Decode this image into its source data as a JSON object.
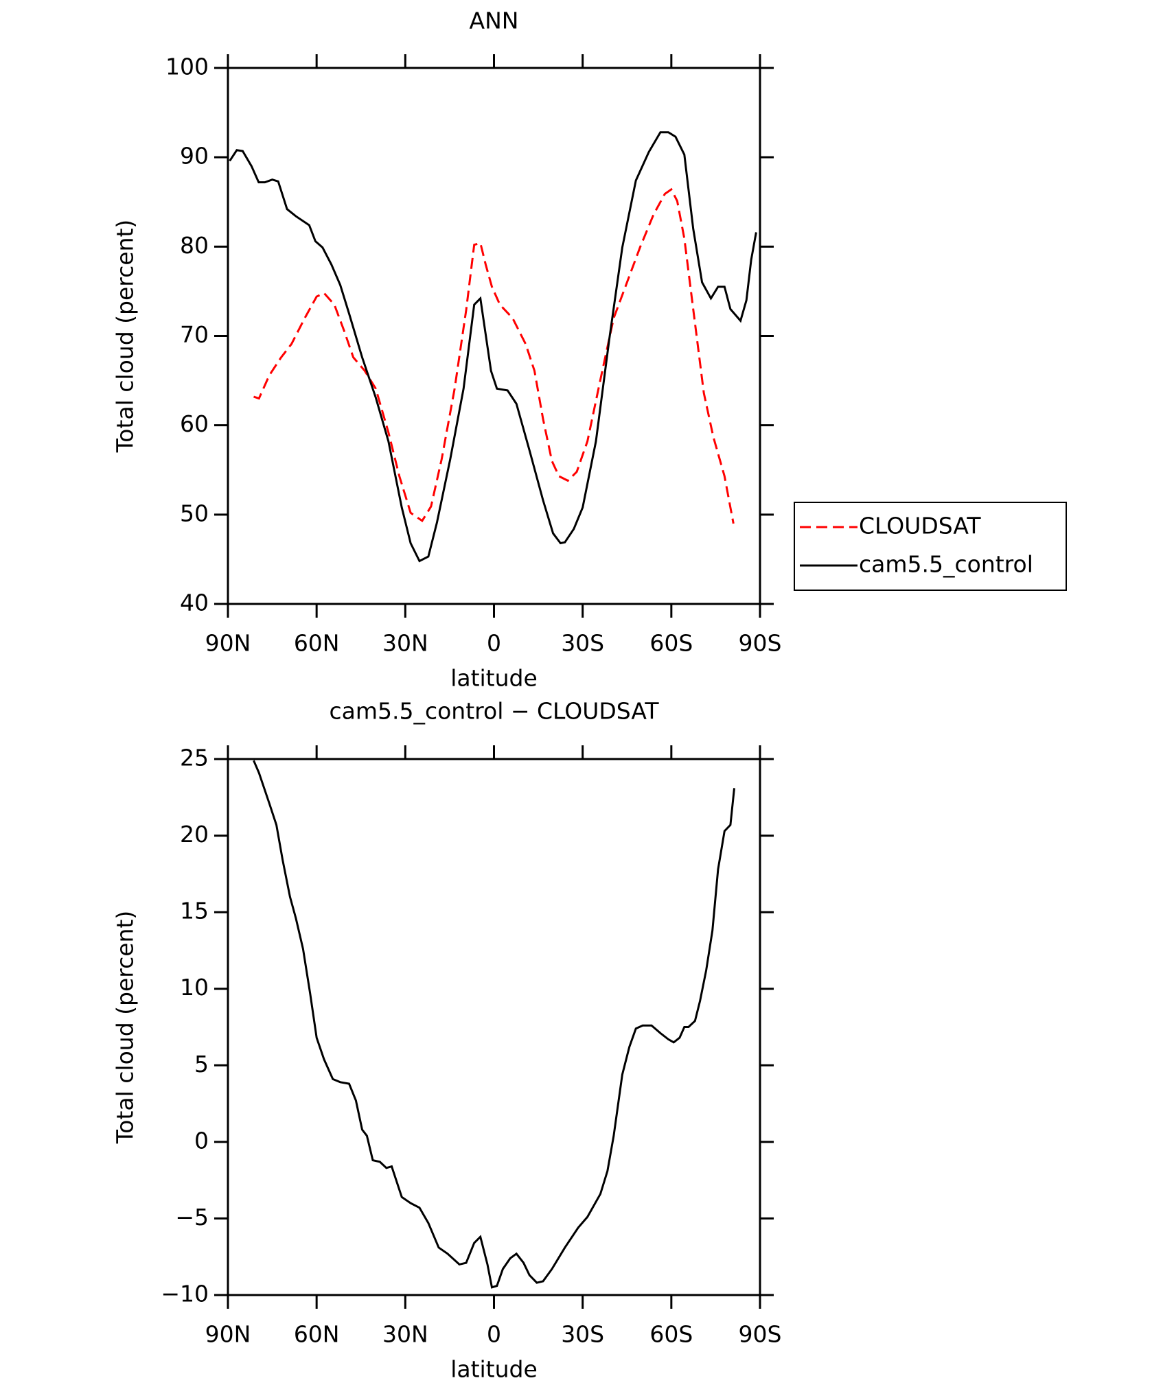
{
  "chart_data": [
    {
      "type": "line",
      "title": "ANN",
      "xlabel": "latitude",
      "ylabel": "Total cloud (percent)",
      "xlim": [
        90,
        -90
      ],
      "xticks": [
        {
          "value": 90,
          "label": "90N"
        },
        {
          "value": 60,
          "label": "60N"
        },
        {
          "value": 30,
          "label": "30N"
        },
        0,
        {
          "value": -30,
          "label": "30S"
        },
        {
          "value": -60,
          "label": "60S"
        },
        {
          "value": -90,
          "label": "90S"
        }
      ],
      "ylim": [
        40,
        100
      ],
      "yticks": [
        40,
        50,
        60,
        70,
        80,
        90,
        100
      ],
      "legend": "right",
      "series": [
        {
          "name": "CLOUDSAT",
          "color": "#ff0000",
          "linestyle": "dashed",
          "x": [
            81.3,
            79.5,
            76,
            72,
            68.5,
            64,
            60,
            57.5,
            54,
            50.6,
            47.6,
            43.7,
            40,
            35.7,
            32,
            28.2,
            24.3,
            21.3,
            17.7,
            13.3,
            9.4,
            6.7,
            4.6,
            2.8,
            0.7,
            -2,
            -6.3,
            -10.7,
            -13.7,
            -16.6,
            -19.6,
            -22,
            -25,
            -28,
            -31.6,
            -36,
            -40.5,
            -45,
            -49.4,
            -54,
            -57.8,
            -60,
            -62,
            -64.4,
            -67.4,
            -71,
            -74.2,
            -78,
            -81
          ],
          "values": [
            63.2,
            63,
            65.6,
            67.6,
            69.1,
            72,
            74.4,
            74.8,
            73.5,
            70.5,
            67.6,
            66.1,
            64.1,
            59.2,
            54.3,
            50.2,
            49.3,
            50.9,
            56.2,
            64.1,
            72.9,
            80.2,
            80.4,
            78,
            75.5,
            73.5,
            72,
            69.1,
            66.1,
            60.7,
            56,
            54.3,
            53.8,
            54.8,
            58.2,
            65.1,
            72,
            76,
            79.9,
            83.6,
            85.9,
            86.4,
            85.1,
            80.9,
            73,
            63.6,
            58.7,
            54.3,
            49
          ]
        },
        {
          "name": "cam5.5_control",
          "color": "#000000",
          "linestyle": "solid",
          "x": [
            89.4,
            87,
            85,
            82,
            79.6,
            77.5,
            75,
            73,
            70,
            67,
            62.5,
            60.4,
            58,
            55,
            52,
            49,
            44.6,
            40,
            35.7,
            31.2,
            28.2,
            25.2,
            22.2,
            19.3,
            14.8,
            10.3,
            6.7,
            4.6,
            1,
            -1,
            -4.6,
            -7.6,
            -12,
            -16.6,
            -20,
            -22.5,
            -24,
            -27,
            -30,
            -34.5,
            -39,
            -43.4,
            -48,
            -52.4,
            -56.3,
            -59,
            -61.4,
            -64.4,
            -67.4,
            -70.4,
            -73.4,
            -75.8,
            -78,
            -80,
            -83.4,
            -85.4,
            -87,
            -88.7
          ],
          "values": [
            89.6,
            90.8,
            90.7,
            89,
            87.2,
            87.2,
            87.5,
            87.3,
            84.2,
            83.4,
            82.4,
            80.6,
            79.9,
            78,
            75.7,
            72.5,
            67.6,
            63.1,
            58.2,
            50.8,
            46.8,
            44.8,
            45.3,
            49.1,
            56.2,
            64.1,
            73.5,
            74.2,
            66.1,
            64.1,
            63.9,
            62.4,
            57.2,
            51.6,
            47.9,
            46.8,
            46.9,
            48.4,
            50.8,
            58.2,
            69.6,
            79.9,
            87.4,
            90.6,
            92.8,
            92.8,
            92.3,
            90.3,
            82,
            76,
            74.2,
            75.5,
            75.5,
            73,
            71.7,
            74,
            78.5,
            81.6
          ]
        }
      ]
    },
    {
      "type": "line",
      "title": "cam5.5_control − CLOUDSAT",
      "xlabel": "latitude",
      "ylabel": "Total cloud (percent)",
      "xlim": [
        90,
        -90
      ],
      "xticks": [
        {
          "value": 90,
          "label": "90N"
        },
        {
          "value": 60,
          "label": "60N"
        },
        {
          "value": 30,
          "label": "30N"
        },
        0,
        {
          "value": -30,
          "label": "30S"
        },
        {
          "value": -60,
          "label": "60S"
        },
        {
          "value": -90,
          "label": "90S"
        }
      ],
      "ylim": [
        -10,
        25
      ],
      "yticks": [
        {
          "value": -10,
          "label": "−10"
        },
        {
          "value": -5,
          "label": "−5"
        },
        0,
        5,
        10,
        15,
        20,
        25
      ],
      "series": [
        {
          "name": "cam5.5_control − CLOUDSAT",
          "color": "#000000",
          "linestyle": "solid",
          "x": [
            81.3,
            79.5,
            76,
            73.6,
            71.5,
            69,
            67,
            64.6,
            62.2,
            60,
            57.5,
            54.5,
            52,
            49,
            46.7,
            44.6,
            43,
            41,
            38.6,
            36.4,
            34.6,
            31.2,
            28.2,
            25.2,
            22.2,
            18.7,
            15.7,
            11.7,
            9.4,
            6.7,
            4.6,
            2.2,
            0.7,
            -1,
            -3,
            -5.5,
            -7.6,
            -10,
            -12,
            -14.5,
            -16.6,
            -19.6,
            -24,
            -28.5,
            -31.6,
            -36,
            -38.4,
            -40.5,
            -43.4,
            -45.8,
            -48,
            -50.3,
            -53.3,
            -56.3,
            -59,
            -60.8,
            -62.8,
            -64.4,
            -65.8,
            -68,
            -69.7,
            -71.8,
            -73.9,
            -75.8,
            -78,
            -80,
            -81.3
          ],
          "values": [
            24.9,
            24.1,
            22.1,
            20.7,
            18.4,
            16,
            14.6,
            12.6,
            9.7,
            6.8,
            5.4,
            4.1,
            3.9,
            3.8,
            2.7,
            0.8,
            0.4,
            -1.2,
            -1.3,
            -1.7,
            -1.6,
            -3.6,
            -4,
            -4.3,
            -5.3,
            -6.9,
            -7.3,
            -8,
            -7.9,
            -6.6,
            -6.2,
            -8,
            -9.5,
            -9.4,
            -8.3,
            -7.6,
            -7.3,
            -7.9,
            -8.7,
            -9.2,
            -9.1,
            -8.3,
            -6.9,
            -5.6,
            -4.9,
            -3.4,
            -1.9,
            0.4,
            4.4,
            6.2,
            7.4,
            7.6,
            7.6,
            7.1,
            6.7,
            6.5,
            6.8,
            7.5,
            7.5,
            7.9,
            9.2,
            11.2,
            13.8,
            17.8,
            20.3,
            20.7,
            23.1
          ]
        }
      ]
    }
  ]
}
